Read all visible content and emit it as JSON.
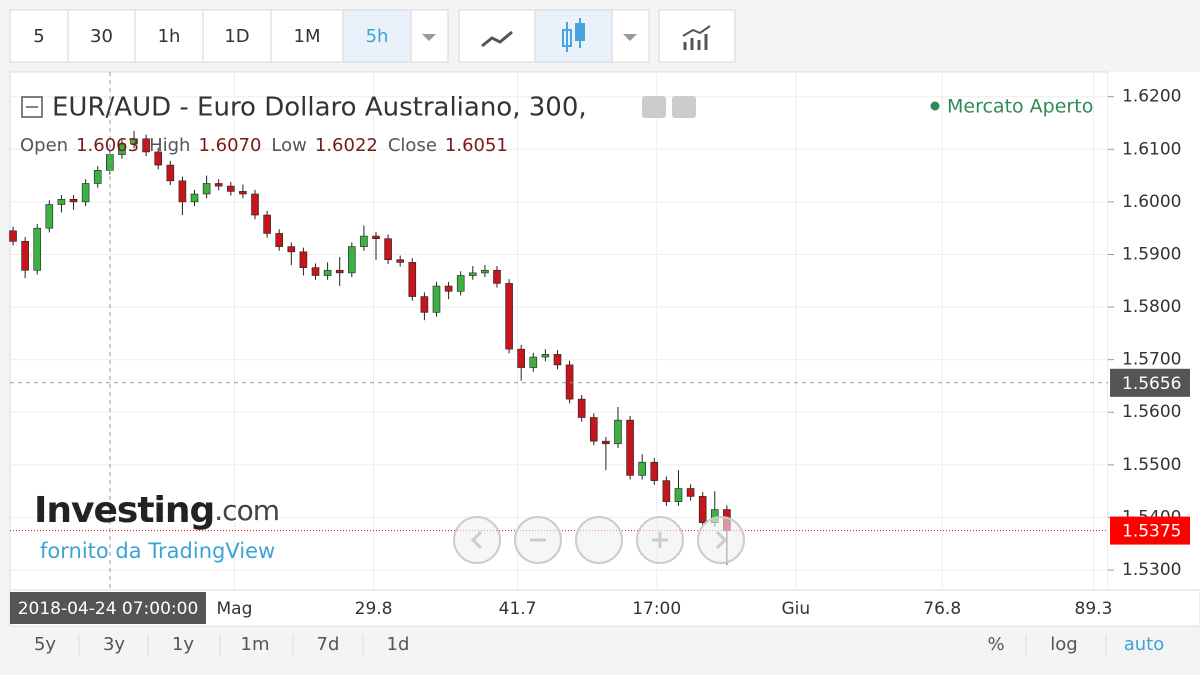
{
  "toolbar": {
    "intervals": [
      "5",
      "30",
      "1h",
      "1D",
      "1M",
      "5h"
    ]
  },
  "legend": {
    "title": "EUR/AUD - Euro Dollaro Australiano, 300,",
    "status": "Mercato Aperto",
    "ohlc_labels": [
      "Open",
      "High",
      "Low",
      "Close"
    ],
    "ohlc_values": [
      "1.6063",
      "1.6070",
      "1.6022",
      "1.6051"
    ]
  },
  "watermark": {
    "brand": "Investing",
    "suffix": ".com",
    "credit": "fornito da TradingView"
  },
  "crosshair": {
    "date": "2018-04-24 07:00:00",
    "price": 1.5656
  },
  "bottom_bar": {
    "ranges": [
      "5y",
      "3y",
      "1y",
      "1m",
      "7d",
      "1d"
    ],
    "options": [
      "%",
      "log",
      "auto"
    ]
  },
  "chart_data": {
    "type": "candlestick",
    "up_color": "#3cb043",
    "down_color": "#c4161c",
    "last_price_color": "#ff0000",
    "last_price": 1.5375,
    "open": [
      1.5945,
      1.5925,
      1.587,
      1.595,
      1.5995,
      1.6005,
      1.6,
      1.6035,
      1.606,
      1.609,
      1.611,
      1.612,
      1.6095,
      1.607,
      1.604,
      1.6,
      1.6015,
      1.6035,
      1.603,
      1.602,
      1.6015,
      1.5975,
      1.594,
      1.5915,
      1.5905,
      1.5875,
      1.586,
      1.587,
      1.5865,
      1.5915,
      1.5935,
      1.593,
      1.589,
      1.5885,
      1.582,
      1.579,
      1.584,
      1.583,
      1.586,
      1.5865,
      1.587,
      1.5845,
      1.572,
      1.5685,
      1.5705,
      1.571,
      1.569,
      1.5625,
      1.559,
      1.5545,
      1.554,
      1.5585,
      1.548,
      1.5505,
      1.547,
      1.543,
      1.5455,
      1.544,
      1.539,
      1.5415
    ],
    "high": [
      1.5953,
      1.5933,
      1.5958,
      1.6003,
      1.6013,
      1.6013,
      1.6043,
      1.6068,
      1.6098,
      1.6118,
      1.6135,
      1.6128,
      1.6103,
      1.6078,
      1.6048,
      1.6023,
      1.605,
      1.6043,
      1.6038,
      1.6033,
      1.6023,
      1.5983,
      1.5948,
      1.5923,
      1.5913,
      1.5883,
      1.5885,
      1.5895,
      1.5923,
      1.5955,
      1.5943,
      1.5938,
      1.5898,
      1.5893,
      1.5828,
      1.5848,
      1.5848,
      1.5868,
      1.5878,
      1.588,
      1.5878,
      1.5853,
      1.5728,
      1.5713,
      1.572,
      1.5718,
      1.5698,
      1.5633,
      1.5598,
      1.5553,
      1.561,
      1.5593,
      1.552,
      1.5513,
      1.5478,
      1.549,
      1.5463,
      1.5448,
      1.545,
      1.5423
    ],
    "low": [
      1.5917,
      1.5855,
      1.5862,
      1.5942,
      1.598,
      1.5985,
      1.5992,
      1.6027,
      1.6052,
      1.6082,
      1.6102,
      1.6087,
      1.6062,
      1.6032,
      1.5975,
      1.5992,
      1.6007,
      1.6022,
      1.6012,
      1.6007,
      1.5967,
      1.5932,
      1.5907,
      1.588,
      1.586,
      1.5852,
      1.5852,
      1.584,
      1.5857,
      1.5907,
      1.589,
      1.5882,
      1.5877,
      1.5812,
      1.5775,
      1.5782,
      1.5815,
      1.5822,
      1.5852,
      1.5857,
      1.5837,
      1.5712,
      1.566,
      1.5677,
      1.5697,
      1.5682,
      1.5617,
      1.5582,
      1.5537,
      1.549,
      1.5532,
      1.5472,
      1.5472,
      1.5462,
      1.5422,
      1.5422,
      1.5432,
      1.5382,
      1.5382,
      1.531
    ],
    "close": [
      1.5925,
      1.587,
      1.595,
      1.5995,
      1.6005,
      1.6,
      1.6035,
      1.606,
      1.609,
      1.611,
      1.612,
      1.6095,
      1.607,
      1.604,
      1.6,
      1.6015,
      1.6035,
      1.603,
      1.602,
      1.6015,
      1.5975,
      1.594,
      1.5915,
      1.5905,
      1.5875,
      1.586,
      1.587,
      1.5865,
      1.5915,
      1.5935,
      1.593,
      1.589,
      1.5885,
      1.582,
      1.579,
      1.584,
      1.583,
      1.586,
      1.5865,
      1.587,
      1.5845,
      1.572,
      1.5685,
      1.5705,
      1.571,
      1.569,
      1.5625,
      1.559,
      1.5545,
      1.554,
      1.5585,
      1.548,
      1.5505,
      1.547,
      1.543,
      1.5455,
      1.544,
      1.539,
      1.5415,
      1.5375
    ],
    "xlim": [
      -0.25,
      90.5
    ],
    "xticks": [
      {
        "value": 18.3,
        "label": "Mag"
      },
      29.8,
      41.7,
      {
        "value": 53.2,
        "label": "17:00"
      },
      {
        "value": 64.7,
        "label": "Giu"
      },
      76.8,
      89.3
    ],
    "ylim": [
      1.5262,
      1.6247
    ],
    "yticks": [
      {
        "value": 1.53,
        "label": "1.5300"
      },
      {
        "value": 1.54,
        "label": "1.5400"
      },
      {
        "value": 1.55,
        "label": "1.5500"
      },
      {
        "value": 1.56,
        "label": "1.5600"
      },
      {
        "value": 1.57,
        "label": "1.5700"
      },
      {
        "value": 1.58,
        "label": "1.5800"
      },
      {
        "value": 1.59,
        "label": "1.5900"
      },
      {
        "value": 1.6,
        "label": "1.6000"
      },
      {
        "value": 1.61,
        "label": "1.6100"
      },
      {
        "value": 1.62,
        "label": "1.6200"
      }
    ],
    "grid": true
  }
}
